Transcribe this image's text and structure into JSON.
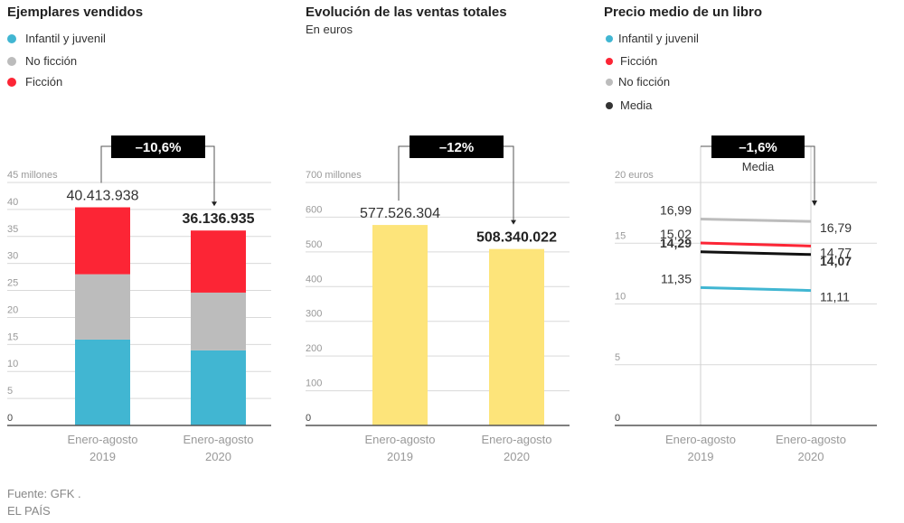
{
  "footer": {
    "source": "Fuente: GFK .",
    "publisher": "EL PAÍS"
  },
  "colors": {
    "infantil": "#41b6d2",
    "no_ficcion": "#bcbcbc",
    "ficcion": "#fc2535",
    "media": "#111111",
    "ventas": "#fde47a",
    "grid": "#d9d9d9",
    "axis": "#555555",
    "tick_text": "#999999",
    "change_box": "#000000"
  },
  "chart_data": [
    {
      "id": "ejemplares",
      "type": "bar",
      "stacked": true,
      "title": "Ejemplares vendidos",
      "subtitle": "",
      "legend": [
        {
          "label": "Infantil y juvenil",
          "color_key": "infantil"
        },
        {
          "label": "No ficción",
          "color_key": "no_ficcion"
        },
        {
          "label": "Ficción",
          "color_key": "ficcion"
        }
      ],
      "categories": [
        "Enero-agosto|2019",
        "Enero-agosto|2020"
      ],
      "category_lines": [
        [
          "Enero-agosto",
          "2019"
        ],
        [
          "Enero-agosto",
          "2020"
        ]
      ],
      "series": [
        {
          "name": "Infantil y juvenil",
          "color_key": "infantil",
          "values": [
            15.9,
            13.9
          ]
        },
        {
          "name": "No ficción",
          "color_key": "no_ficcion",
          "values": [
            12.1,
            10.7
          ]
        },
        {
          "name": "Ficción",
          "color_key": "ficcion",
          "values": [
            12.4,
            11.5
          ]
        }
      ],
      "totals": [
        40.413938,
        36.136935
      ],
      "total_labels": [
        "40.413.938",
        "36.136.935"
      ],
      "ylim": [
        0,
        45
      ],
      "yticks": [
        0,
        5,
        10,
        15,
        20,
        25,
        30,
        35,
        40,
        45
      ],
      "ytick_labels": [
        "0",
        "5",
        "10",
        "15",
        "20",
        "25",
        "30",
        "35",
        "40",
        "45 millones"
      ],
      "change_label": "–10,6%",
      "change_sublabel": "",
      "grid": true
    },
    {
      "id": "ventas",
      "type": "bar",
      "stacked": false,
      "title": "Evolución de las ventas totales",
      "subtitle": "En euros",
      "legend": [],
      "categories": [
        "Enero-agosto|2019",
        "Enero-agosto|2020"
      ],
      "category_lines": [
        [
          "Enero-agosto",
          "2019"
        ],
        [
          "Enero-agosto",
          "2020"
        ]
      ],
      "series": [
        {
          "name": "Ventas totales",
          "color_key": "ventas",
          "values": [
            577.526304,
            508.340022
          ]
        }
      ],
      "total_labels": [
        "577.526.304",
        "508.340.022"
      ],
      "ylim": [
        0,
        700
      ],
      "yticks": [
        0,
        100,
        200,
        300,
        400,
        500,
        600,
        700
      ],
      "ytick_labels": [
        "0",
        "100",
        "200",
        "300",
        "400",
        "500",
        "600",
        "700 millones"
      ],
      "change_label": "–12%",
      "change_sublabel": "",
      "grid": true
    },
    {
      "id": "precio",
      "type": "line",
      "title": "Precio medio de un libro",
      "subtitle": "",
      "legend": [
        {
          "label": "Infantil y juvenil",
          "color_key": "infantil"
        },
        {
          "label": "Ficción",
          "color_key": "ficcion"
        },
        {
          "label": "No ficción",
          "color_key": "no_ficcion"
        },
        {
          "label": "Media",
          "color_key": "media"
        }
      ],
      "categories": [
        "Enero-agosto|2019",
        "Enero-agosto|2020"
      ],
      "category_lines": [
        [
          "Enero-agosto",
          "2019"
        ],
        [
          "Enero-agosto",
          "2020"
        ]
      ],
      "series": [
        {
          "name": "No ficción",
          "color_key": "no_ficcion",
          "values": [
            16.99,
            16.79
          ],
          "labels": [
            "16,99",
            "16,79"
          ],
          "bold": false
        },
        {
          "name": "Ficción",
          "color_key": "ficcion",
          "values": [
            15.02,
            14.77
          ],
          "labels": [
            "15,02",
            "14,77"
          ],
          "bold": false
        },
        {
          "name": "Media",
          "color_key": "media",
          "values": [
            14.29,
            14.07
          ],
          "labels": [
            "14,29",
            "14,07"
          ],
          "bold": true
        },
        {
          "name": "Infantil y juvenil",
          "color_key": "infantil",
          "values": [
            11.35,
            11.11
          ],
          "labels": [
            "11,35",
            "11,11"
          ],
          "bold": false
        }
      ],
      "ylim": [
        0,
        20
      ],
      "yticks": [
        0,
        5,
        10,
        15,
        20
      ],
      "ytick_labels": [
        "0",
        "5",
        "10",
        "15",
        "20 euros"
      ],
      "change_label": "–1,6%",
      "change_sublabel": "Media",
      "grid": true
    }
  ]
}
